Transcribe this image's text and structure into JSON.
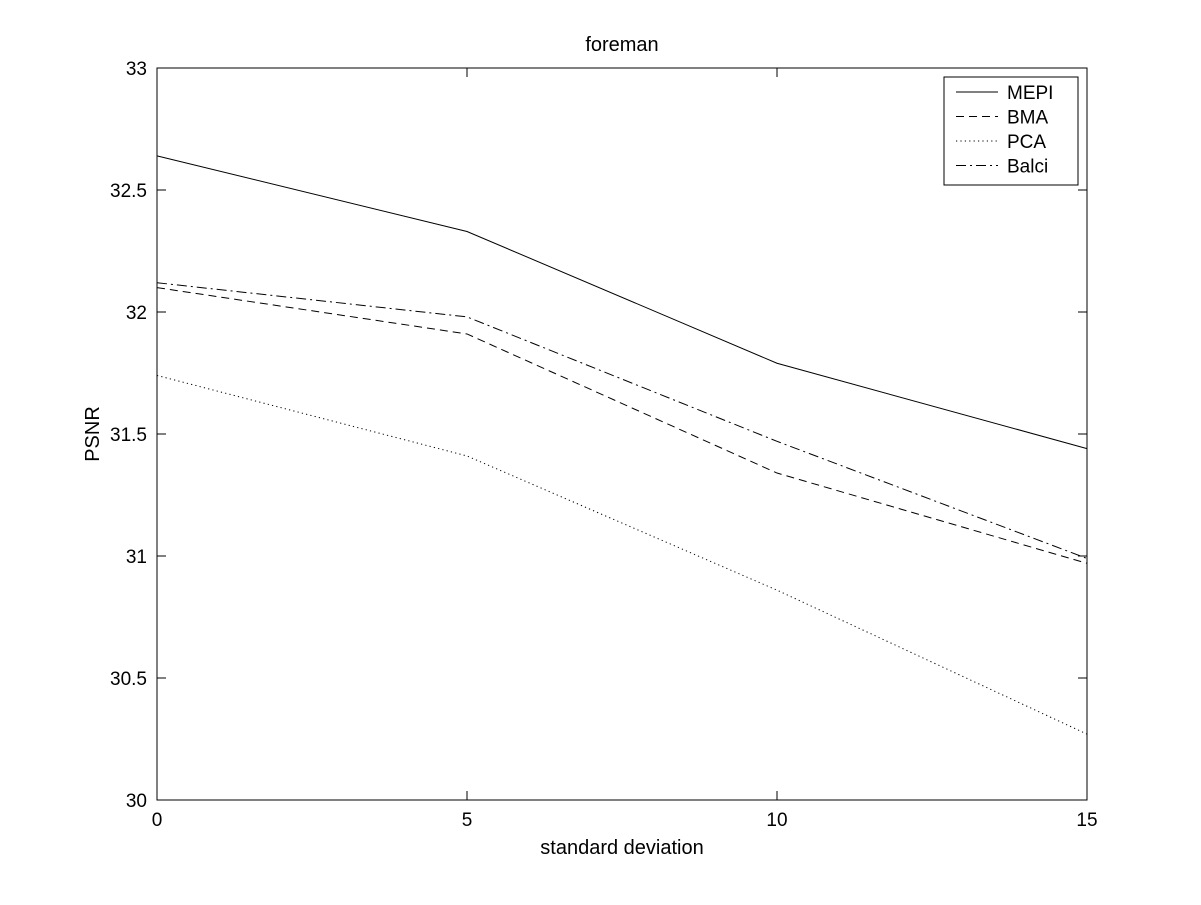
{
  "chart_data": {
    "type": "line",
    "title": "foreman",
    "xlabel": "standard deviation",
    "ylabel": "PSNR",
    "xlim": [
      0,
      15
    ],
    "ylim": [
      30,
      33
    ],
    "x": [
      0,
      5,
      10,
      15
    ],
    "xticks": [
      "0",
      "5",
      "10",
      "15"
    ],
    "yticks": [
      "30",
      "30.5",
      "31",
      "31.5",
      "32",
      "32.5",
      "33"
    ],
    "grid": false,
    "legend_position": "top-right",
    "series": [
      {
        "name": "MEPI",
        "values": [
          32.64,
          32.33,
          31.79,
          31.44
        ],
        "style": "solid",
        "color": "#000000"
      },
      {
        "name": "BMA",
        "values": [
          32.1,
          31.91,
          31.34,
          30.97
        ],
        "style": "dashed",
        "color": "#000000"
      },
      {
        "name": "PCA",
        "values": [
          31.74,
          31.41,
          30.86,
          30.27
        ],
        "style": "dotted",
        "color": "#000000"
      },
      {
        "name": "Balci",
        "values": [
          32.12,
          31.98,
          31.47,
          30.99
        ],
        "style": "dashdot",
        "color": "#000000"
      }
    ]
  }
}
